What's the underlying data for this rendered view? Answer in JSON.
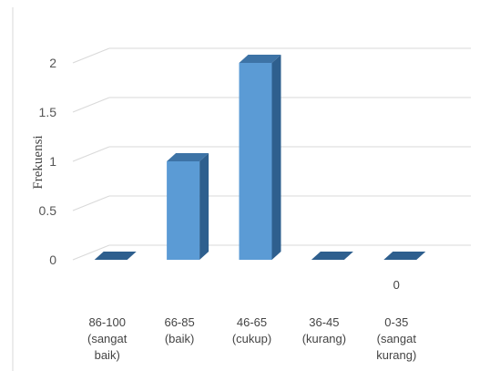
{
  "chart_data": {
    "type": "bar",
    "ylabel": "Frekuensi",
    "ylim": [
      0,
      2
    ],
    "yticks": [
      "0",
      "0.5",
      "1",
      "1.5",
      "2"
    ],
    "grid": true,
    "categories": [
      [
        "86-100",
        "(sangat",
        "baik)"
      ],
      [
        "66-85",
        "(baik)"
      ],
      [
        "46-65",
        "(cukup)"
      ],
      [
        "36-45",
        "(kurang)"
      ],
      [
        "0-35",
        "(sangat",
        "kurang)"
      ]
    ],
    "values": [
      0,
      1,
      2,
      0,
      0
    ],
    "data_labels": [
      "",
      "",
      "",
      "",
      "0"
    ],
    "colors": {
      "front": "#5b9bd5",
      "side": "#2e5f8e",
      "top": "#3d73a6",
      "grid": "#d9d9d9"
    }
  }
}
